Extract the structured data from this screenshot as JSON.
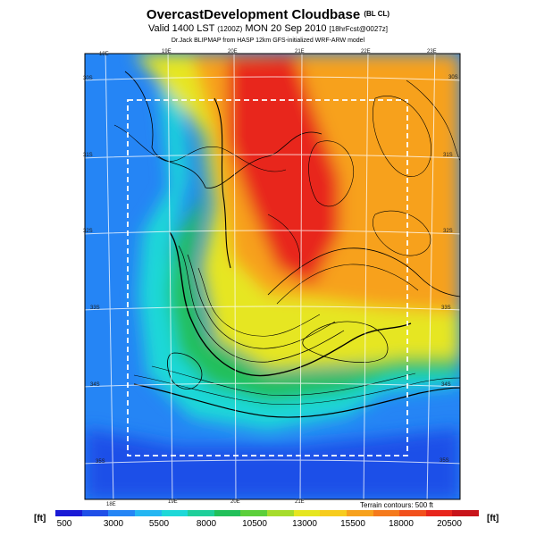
{
  "title": {
    "main": "OvercastDevelopment Cloudbase",
    "main_suffix": "(BL CL)",
    "valid": "Valid 1400 LST",
    "valid_utc": "(1200Z)",
    "valid_date": "MON 20 Sep 2010",
    "forecast": "[18hrFcst@0027z]",
    "credit": "Dr.Jack BLIPMAP from HASP 12km GFS-initialized WRF-ARW model"
  },
  "axes": {
    "lon_top": [
      "18E",
      "19E",
      "20E",
      "21E",
      "22E",
      "23E"
    ],
    "lon_bottom": [
      "18E",
      "19E",
      "20E",
      "21E"
    ],
    "lat_left": [
      "30S",
      "31S",
      "32S",
      "33S",
      "34S",
      "35S"
    ],
    "lat_right": [
      "30S",
      "31S",
      "32S",
      "33S",
      "34S",
      "35S"
    ]
  },
  "colorbar": {
    "unit_left": "[ft]",
    "unit_right": "[ft]",
    "tick_labels": [
      "500",
      "3000",
      "5500",
      "8000",
      "10500",
      "13000",
      "15500",
      "18000",
      "20500"
    ],
    "colors": [
      "#1a1ad6",
      "#1f4fe8",
      "#2585f5",
      "#24b6f2",
      "#1ed8d8",
      "#1fcf9a",
      "#22c05a",
      "#5ccf3a",
      "#a6dc2c",
      "#e6e620",
      "#f7cc1e",
      "#f7a11d",
      "#f57a1c",
      "#f2501c",
      "#e8261c",
      "#c8141a"
    ]
  },
  "terrain_note": "Terrain contours: 500 ft",
  "map_colors": {
    "ocean_deep": "#1f4fe8",
    "ocean": "#2585f5",
    "coast": "#1ed8d8",
    "low": "#22c05a",
    "mid": "#e6e620",
    "high": "#f7a11d",
    "peak": "#e8261c"
  }
}
